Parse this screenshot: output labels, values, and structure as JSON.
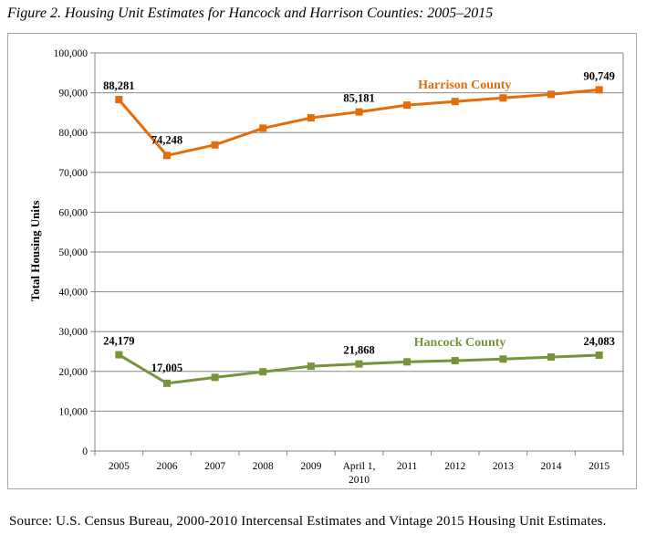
{
  "title": "Figure 2. Housing Unit Estimates for Hancock and Harrison Counties: 2005–2015",
  "source": "Source: U.S. Census Bureau, 2000-2010 Intercensal Estimates and Vintage 2015 Housing Unit Estimates.",
  "chart_data": {
    "type": "line",
    "title": "Figure 2. Housing Unit Estimates for Hancock and Harrison Counties: 2005–2015",
    "ylabel": "Total Housing Units",
    "xlabel": "",
    "ylim": [
      0,
      100000
    ],
    "yticks": [
      "0",
      "10,000",
      "20,000",
      "30,000",
      "40,000",
      "50,000",
      "60,000",
      "70,000",
      "80,000",
      "90,000",
      "100,000"
    ],
    "categories": [
      "2005",
      "2006",
      "2007",
      "2008",
      "2009",
      "April 1, 2010",
      "2011",
      "2012",
      "2013",
      "2014",
      "2015"
    ],
    "category_lines": [
      [
        "2005"
      ],
      [
        "2006"
      ],
      [
        "2007"
      ],
      [
        "2008"
      ],
      [
        "2009"
      ],
      [
        "April 1,",
        "2010"
      ],
      [
        "2011"
      ],
      [
        "2012"
      ],
      [
        "2013"
      ],
      [
        "2014"
      ],
      [
        "2015"
      ]
    ],
    "grid": true,
    "series": [
      {
        "name": "Harrison County",
        "color": "#e46c0a",
        "values": [
          88281,
          74248,
          76900,
          81100,
          83700,
          85181,
          86900,
          87800,
          88700,
          89600,
          90749
        ],
        "labels": [
          {
            "index": 0,
            "text": "88,281"
          },
          {
            "index": 1,
            "text": "74,248"
          },
          {
            "index": 5,
            "text": "85,181"
          },
          {
            "index": 10,
            "text": "90,749"
          }
        ]
      },
      {
        "name": "Hancock County",
        "color": "#77933c",
        "values": [
          24179,
          17005,
          18500,
          19900,
          21300,
          21868,
          22400,
          22700,
          23100,
          23600,
          24083
        ],
        "labels": [
          {
            "index": 0,
            "text": "24,179"
          },
          {
            "index": 1,
            "text": "17,005"
          },
          {
            "index": 5,
            "text": "21,868"
          },
          {
            "index": 10,
            "text": "24,083"
          }
        ]
      }
    ]
  }
}
